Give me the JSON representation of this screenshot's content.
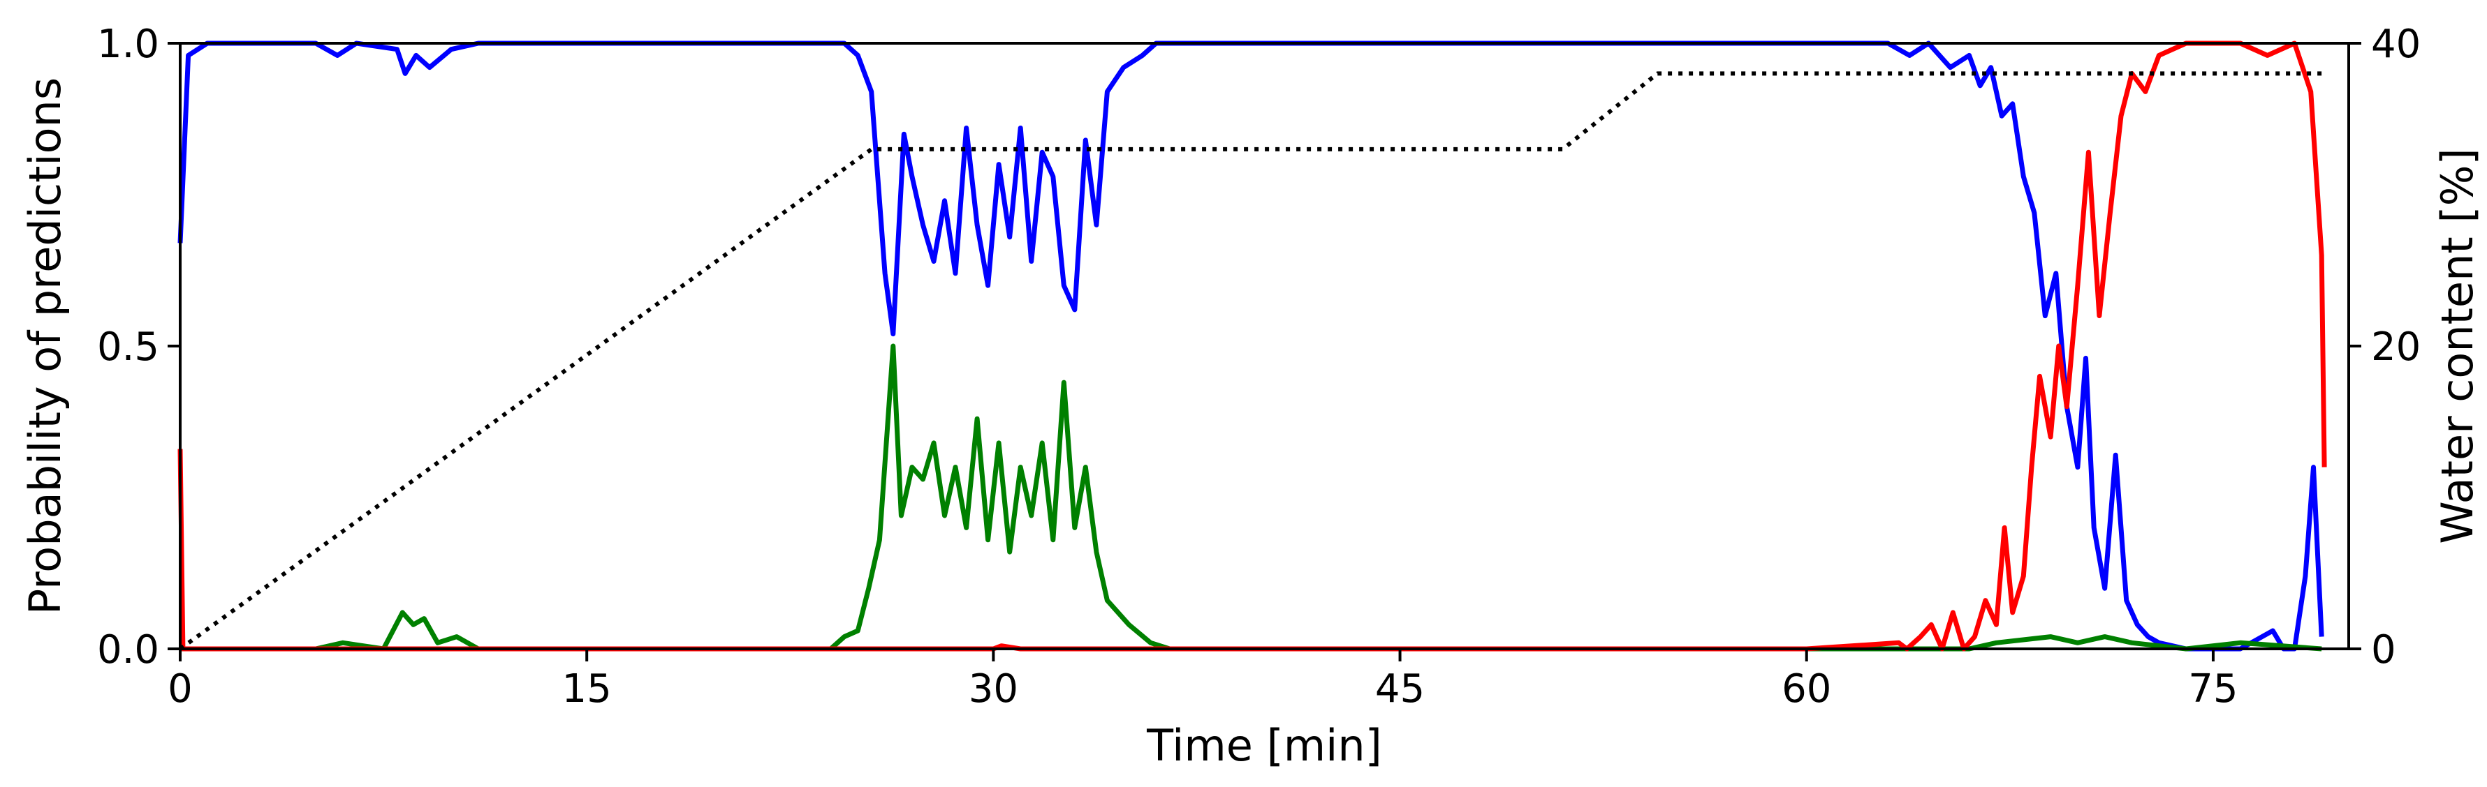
{
  "chart_data": {
    "type": "line",
    "title": "",
    "xlabel": "Time [min]",
    "ylabel_left": "Probability of predictions",
    "ylabel_right": "Water content [%]",
    "xlim": [
      0,
      80
    ],
    "ylim_left": [
      0,
      1
    ],
    "ylim_right": [
      0,
      40
    ],
    "x_ticks": [
      0,
      15,
      30,
      45,
      60,
      75
    ],
    "y_ticks_left": [
      "0.0",
      "0.5",
      "1.0"
    ],
    "y_ticks_right": [
      "0",
      "20",
      "40"
    ],
    "grid": false,
    "legend": "none",
    "series": [
      {
        "color": "#0000ff",
        "axis": "left",
        "points": [
          [
            0,
            0.67
          ],
          [
            0.3,
            0.98
          ],
          [
            1,
            1.0
          ],
          [
            5,
            1.0
          ],
          [
            5.8,
            0.98
          ],
          [
            6.5,
            1.0
          ],
          [
            8,
            0.99
          ],
          [
            8.3,
            0.95
          ],
          [
            8.7,
            0.98
          ],
          [
            9.2,
            0.96
          ],
          [
            10,
            0.99
          ],
          [
            11,
            1.0
          ],
          [
            20,
            1.0
          ],
          [
            24.5,
            1.0
          ],
          [
            25,
            0.98
          ],
          [
            25.5,
            0.92
          ],
          [
            26,
            0.62
          ],
          [
            26.3,
            0.52
          ],
          [
            26.7,
            0.85
          ],
          [
            27,
            0.78
          ],
          [
            27.4,
            0.7
          ],
          [
            27.8,
            0.64
          ],
          [
            28.2,
            0.74
          ],
          [
            28.6,
            0.62
          ],
          [
            29,
            0.86
          ],
          [
            29.4,
            0.7
          ],
          [
            29.8,
            0.6
          ],
          [
            30.2,
            0.8
          ],
          [
            30.6,
            0.68
          ],
          [
            31,
            0.86
          ],
          [
            31.4,
            0.64
          ],
          [
            31.8,
            0.82
          ],
          [
            32.2,
            0.78
          ],
          [
            32.6,
            0.6
          ],
          [
            33,
            0.56
          ],
          [
            33.4,
            0.84
          ],
          [
            33.8,
            0.7
          ],
          [
            34.2,
            0.92
          ],
          [
            34.8,
            0.96
          ],
          [
            35.5,
            0.98
          ],
          [
            36,
            1.0
          ],
          [
            40,
            1.0
          ],
          [
            60,
            1.0
          ],
          [
            63,
            1.0
          ],
          [
            63.8,
            0.98
          ],
          [
            64.5,
            1.0
          ],
          [
            65.3,
            0.96
          ],
          [
            66,
            0.98
          ],
          [
            66.4,
            0.93
          ],
          [
            66.8,
            0.96
          ],
          [
            67.2,
            0.88
          ],
          [
            67.6,
            0.9
          ],
          [
            68,
            0.78
          ],
          [
            68.4,
            0.72
          ],
          [
            68.8,
            0.55
          ],
          [
            69.2,
            0.62
          ],
          [
            69.6,
            0.4
          ],
          [
            70,
            0.3
          ],
          [
            70.3,
            0.48
          ],
          [
            70.6,
            0.2
          ],
          [
            71,
            0.1
          ],
          [
            71.4,
            0.32
          ],
          [
            71.8,
            0.08
          ],
          [
            72.2,
            0.04
          ],
          [
            72.6,
            0.02
          ],
          [
            73,
            0.01
          ],
          [
            74,
            0.0
          ],
          [
            76,
            0.0
          ],
          [
            77.2,
            0.03
          ],
          [
            77.6,
            0.0
          ],
          [
            78,
            0.0
          ],
          [
            78.4,
            0.12
          ],
          [
            78.7,
            0.3
          ],
          [
            79,
            0.02
          ]
        ]
      },
      {
        "color": "#008000",
        "axis": "left",
        "points": [
          [
            0,
            0.0
          ],
          [
            5,
            0.0
          ],
          [
            6,
            0.01
          ],
          [
            7.5,
            0.0
          ],
          [
            8.2,
            0.06
          ],
          [
            8.6,
            0.04
          ],
          [
            9,
            0.05
          ],
          [
            9.5,
            0.01
          ],
          [
            10.2,
            0.02
          ],
          [
            11,
            0.0
          ],
          [
            24,
            0.0
          ],
          [
            24.5,
            0.02
          ],
          [
            25,
            0.03
          ],
          [
            25.4,
            0.1
          ],
          [
            25.8,
            0.18
          ],
          [
            26.3,
            0.5
          ],
          [
            26.6,
            0.22
          ],
          [
            27,
            0.3
          ],
          [
            27.4,
            0.28
          ],
          [
            27.8,
            0.34
          ],
          [
            28.2,
            0.22
          ],
          [
            28.6,
            0.3
          ],
          [
            29,
            0.2
          ],
          [
            29.4,
            0.38
          ],
          [
            29.8,
            0.18
          ],
          [
            30.2,
            0.34
          ],
          [
            30.6,
            0.16
          ],
          [
            31,
            0.3
          ],
          [
            31.4,
            0.22
          ],
          [
            31.8,
            0.34
          ],
          [
            32.2,
            0.18
          ],
          [
            32.6,
            0.44
          ],
          [
            33,
            0.2
          ],
          [
            33.4,
            0.3
          ],
          [
            33.8,
            0.16
          ],
          [
            34.2,
            0.08
          ],
          [
            35,
            0.04
          ],
          [
            35.8,
            0.01
          ],
          [
            36.5,
            0.0
          ],
          [
            40,
            0.0
          ],
          [
            60,
            0.0
          ],
          [
            66,
            0.0
          ],
          [
            67,
            0.01
          ],
          [
            69,
            0.02
          ],
          [
            70,
            0.01
          ],
          [
            71,
            0.02
          ],
          [
            72,
            0.01
          ],
          [
            74,
            0.0
          ],
          [
            76,
            0.01
          ],
          [
            79,
            0.0
          ]
        ]
      },
      {
        "color": "#ff0000",
        "axis": "left",
        "points": [
          [
            0,
            0.33
          ],
          [
            0.1,
            0.0
          ],
          [
            10,
            0.0
          ],
          [
            30,
            0.0
          ],
          [
            30.3,
            0.005
          ],
          [
            31,
            0.0
          ],
          [
            60,
            0.0
          ],
          [
            63.4,
            0.01
          ],
          [
            63.7,
            0.0
          ],
          [
            64.2,
            0.02
          ],
          [
            64.6,
            0.04
          ],
          [
            65,
            0.0
          ],
          [
            65.4,
            0.06
          ],
          [
            65.8,
            0.0
          ],
          [
            66.2,
            0.02
          ],
          [
            66.6,
            0.08
          ],
          [
            67,
            0.04
          ],
          [
            67.3,
            0.2
          ],
          [
            67.6,
            0.06
          ],
          [
            68,
            0.12
          ],
          [
            68.3,
            0.3
          ],
          [
            68.6,
            0.45
          ],
          [
            69,
            0.35
          ],
          [
            69.3,
            0.5
          ],
          [
            69.6,
            0.4
          ],
          [
            70,
            0.6
          ],
          [
            70.4,
            0.82
          ],
          [
            70.8,
            0.55
          ],
          [
            71.2,
            0.72
          ],
          [
            71.6,
            0.88
          ],
          [
            72,
            0.95
          ],
          [
            72.5,
            0.92
          ],
          [
            73,
            0.98
          ],
          [
            74,
            1.0
          ],
          [
            76,
            1.0
          ],
          [
            77,
            0.98
          ],
          [
            78,
            1.0
          ],
          [
            78.6,
            0.92
          ],
          [
            79,
            0.65
          ],
          [
            79.1,
            0.3
          ]
        ]
      },
      {
        "color": "#000000",
        "axis": "right",
        "style": "dotted",
        "points": [
          [
            0,
            0
          ],
          [
            25.5,
            33
          ],
          [
            51,
            33
          ],
          [
            54.5,
            38
          ],
          [
            79,
            38
          ]
        ]
      }
    ]
  }
}
